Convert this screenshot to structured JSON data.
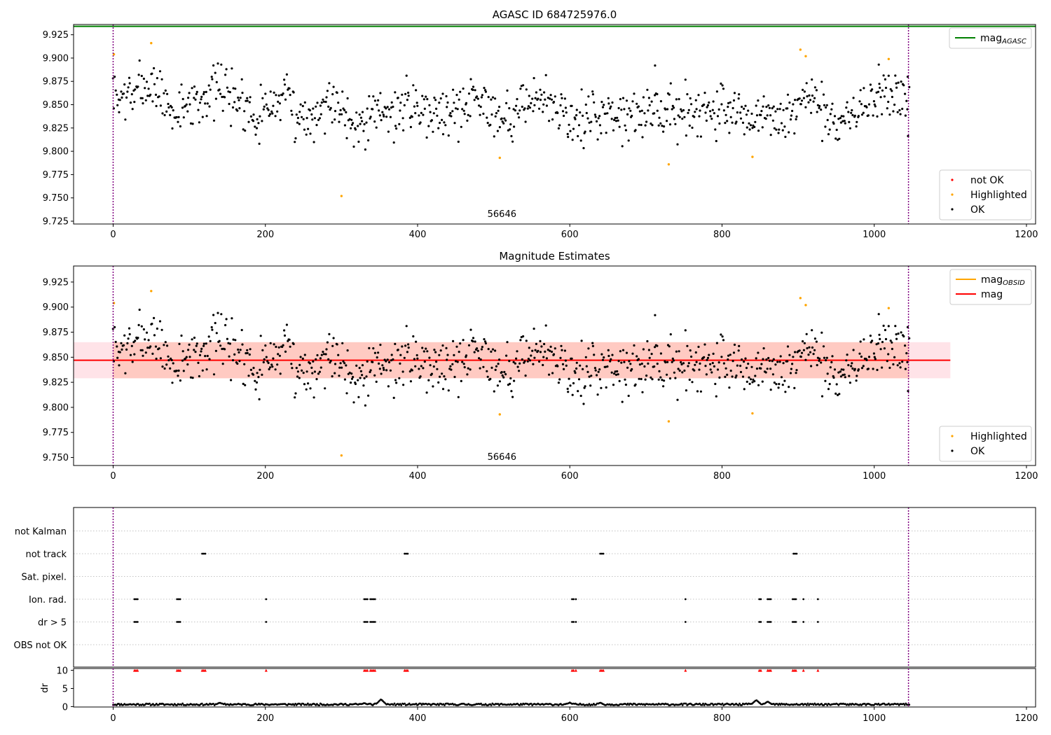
{
  "colors": {
    "ok": "#000000",
    "highlighted": "#ffa500",
    "not_ok": "#ff0000",
    "mag_agasc": "#008000",
    "mag_obsid": "#ffa500",
    "mag": "#ff0000",
    "band": "#ff7f50",
    "band_outer": "#ffc0cb",
    "vline": "#800080",
    "grid": "#b0b0b0"
  },
  "chart_data": [
    {
      "id": "top",
      "type": "scatter",
      "title": "AGASC ID 684725976.0",
      "xlim": [
        -52,
        1212
      ],
      "ylim": [
        9.722,
        9.936
      ],
      "xticks": [
        0,
        200,
        400,
        600,
        800,
        1000,
        1200
      ],
      "yticks": [
        9.725,
        9.75,
        9.775,
        9.8,
        9.825,
        9.85,
        9.875,
        9.9,
        9.925
      ],
      "ytick_labels": [
        "9.725",
        "9.750",
        "9.775",
        "9.800",
        "9.825",
        "9.850",
        "9.875",
        "9.900",
        "9.925"
      ],
      "hlines": [
        {
          "y": 9.934,
          "color_key": "mag_agasc"
        }
      ],
      "vlines": [
        0,
        1045
      ],
      "annotation": {
        "text": "56646",
        "x": 520,
        "y": 9.731
      },
      "legend_top": [
        {
          "label": "mag",
          "sub": "AGASC",
          "color_key": "mag_agasc",
          "kind": "line"
        }
      ],
      "legend_bottom": [
        {
          "label": "not OK",
          "color_key": "not_ok",
          "kind": "marker"
        },
        {
          "label": "Highlighted",
          "color_key": "highlighted",
          "kind": "marker"
        },
        {
          "label": "OK",
          "color_key": "ok",
          "kind": "marker"
        }
      ],
      "highlighted_points": [
        [
          1,
          9.904
        ],
        [
          50,
          9.916
        ],
        [
          300,
          9.752
        ],
        [
          508,
          9.793
        ],
        [
          730,
          9.786
        ],
        [
          840,
          9.794
        ],
        [
          903,
          9.909
        ],
        [
          910,
          9.902
        ],
        [
          1019,
          9.899
        ]
      ],
      "series_ok": {
        "x_start": 0,
        "x_end": 1046,
        "count": 900,
        "center": [
          [
            0,
            9.852
          ],
          [
            50,
            9.872
          ],
          [
            80,
            9.84
          ],
          [
            140,
            9.87
          ],
          [
            190,
            9.84
          ],
          [
            220,
            9.86
          ],
          [
            250,
            9.835
          ],
          [
            290,
            9.855
          ],
          [
            320,
            9.83
          ],
          [
            350,
            9.84
          ],
          [
            400,
            9.85
          ],
          [
            450,
            9.84
          ],
          [
            470,
            9.86
          ],
          [
            520,
            9.835
          ],
          [
            560,
            9.86
          ],
          [
            610,
            9.83
          ],
          [
            650,
            9.845
          ],
          [
            700,
            9.84
          ],
          [
            750,
            9.845
          ],
          [
            800,
            9.845
          ],
          [
            850,
            9.835
          ],
          [
            880,
            9.83
          ],
          [
            910,
            9.86
          ],
          [
            950,
            9.83
          ],
          [
            980,
            9.845
          ],
          [
            1020,
            9.865
          ],
          [
            1046,
            9.845
          ]
        ],
        "spread": 0.022,
        "seed": 7,
        "outliers": [
          [
            712,
            9.892
          ],
          [
            1006,
            9.893
          ],
          [
            1044,
            9.88
          ]
        ]
      }
    },
    {
      "id": "middle",
      "type": "scatter",
      "title": "Magnitude Estimates",
      "xlim": [
        -52,
        1212
      ],
      "ylim": [
        9.742,
        9.941
      ],
      "xticks": [
        0,
        200,
        400,
        600,
        800,
        1000,
        1200
      ],
      "yticks": [
        9.75,
        9.775,
        9.8,
        9.825,
        9.85,
        9.875,
        9.9,
        9.925
      ],
      "ytick_labels": [
        "9.750",
        "9.775",
        "9.800",
        "9.825",
        "9.850",
        "9.875",
        "9.900",
        "9.925"
      ],
      "band": {
        "x0": -52,
        "x1": 1100,
        "inner_x0": 0,
        "inner_x1": 1046,
        "y0": 9.829,
        "y1": 9.865
      },
      "hlines": [
        {
          "y": 9.847,
          "color_key": "mag",
          "x0": -52,
          "x1": 1100
        }
      ],
      "vlines": [
        0,
        1045
      ],
      "annotation": {
        "text": "56646",
        "x": 520,
        "y": 9.749
      },
      "legend_top": [
        {
          "label": "mag",
          "sub": "OBSID",
          "color_key": "mag_obsid",
          "kind": "line"
        },
        {
          "label": "mag",
          "sub": "",
          "color_key": "mag",
          "kind": "line"
        }
      ],
      "legend_bottom": [
        {
          "label": "Highlighted",
          "color_key": "highlighted",
          "kind": "marker"
        },
        {
          "label": "OK",
          "color_key": "ok",
          "kind": "marker"
        }
      ],
      "highlighted_points": [
        [
          1,
          9.904
        ],
        [
          50,
          9.916
        ],
        [
          300,
          9.752
        ],
        [
          508,
          9.793
        ],
        [
          730,
          9.786
        ],
        [
          840,
          9.794
        ],
        [
          903,
          9.909
        ],
        [
          910,
          9.902
        ],
        [
          1019,
          9.899
        ]
      ],
      "series_ok": "same_as_top"
    },
    {
      "id": "flags",
      "type": "scatter",
      "xlim": [
        -52,
        1212
      ],
      "categories": [
        "OBS not OK",
        "dr > 5",
        "Ion. rad.",
        "Sat. pixel.",
        "not track",
        "not Kalman"
      ],
      "vlines": [
        0,
        1045
      ],
      "flag_points": {
        "not track": [
          [
            117,
            3
          ],
          [
            383,
            3
          ],
          [
            640,
            3
          ],
          [
            894,
            3
          ]
        ],
        "Ion. rad.": [
          [
            28,
            3
          ],
          [
            84,
            3
          ],
          [
            201,
            1
          ],
          [
            330,
            3
          ],
          [
            338,
            4
          ],
          [
            603,
            2
          ],
          [
            608,
            1
          ],
          [
            752,
            1
          ],
          [
            849,
            2
          ],
          [
            860,
            3
          ],
          [
            893,
            3
          ],
          [
            907,
            1
          ],
          [
            926,
            1
          ]
        ],
        "dr > 5": [
          [
            28,
            3
          ],
          [
            84,
            3
          ],
          [
            201,
            1
          ],
          [
            330,
            3
          ],
          [
            338,
            4
          ],
          [
            603,
            2
          ],
          [
            608,
            1
          ],
          [
            752,
            1
          ],
          [
            849,
            2
          ],
          [
            860,
            3
          ],
          [
            893,
            3
          ],
          [
            907,
            1
          ],
          [
            926,
            1
          ]
        ]
      }
    },
    {
      "id": "dr",
      "type": "scatter",
      "ylabel": "dr",
      "xlim": [
        -52,
        1212
      ],
      "ylim": [
        0,
        10
      ],
      "xticks": [
        0,
        200,
        400,
        600,
        800,
        1000,
        1200
      ],
      "yticks": [
        0,
        5,
        10
      ],
      "ytick_labels": [
        "0",
        "5",
        "10"
      ],
      "vlines": [
        0,
        1045
      ],
      "not_ok_x": [
        [
          28,
          3
        ],
        [
          84,
          3
        ],
        [
          117,
          3
        ],
        [
          201,
          1
        ],
        [
          330,
          3
        ],
        [
          338,
          4
        ],
        [
          383,
          3
        ],
        [
          603,
          2
        ],
        [
          608,
          1
        ],
        [
          640,
          3
        ],
        [
          752,
          1
        ],
        [
          849,
          2
        ],
        [
          860,
          3
        ],
        [
          893,
          3
        ],
        [
          907,
          1
        ],
        [
          926,
          1
        ]
      ],
      "dr_series": {
        "x_start": 0,
        "x_end": 1046,
        "count": 700,
        "base": 0.6,
        "spread": 0.5,
        "seed": 11,
        "bumps": [
          [
            140,
            1.1
          ],
          [
            330,
            1.0
          ],
          [
            352,
            2.0
          ],
          [
            600,
            1.1
          ],
          [
            640,
            1.1
          ],
          [
            845,
            1.8
          ],
          [
            860,
            1.4
          ]
        ]
      }
    }
  ]
}
